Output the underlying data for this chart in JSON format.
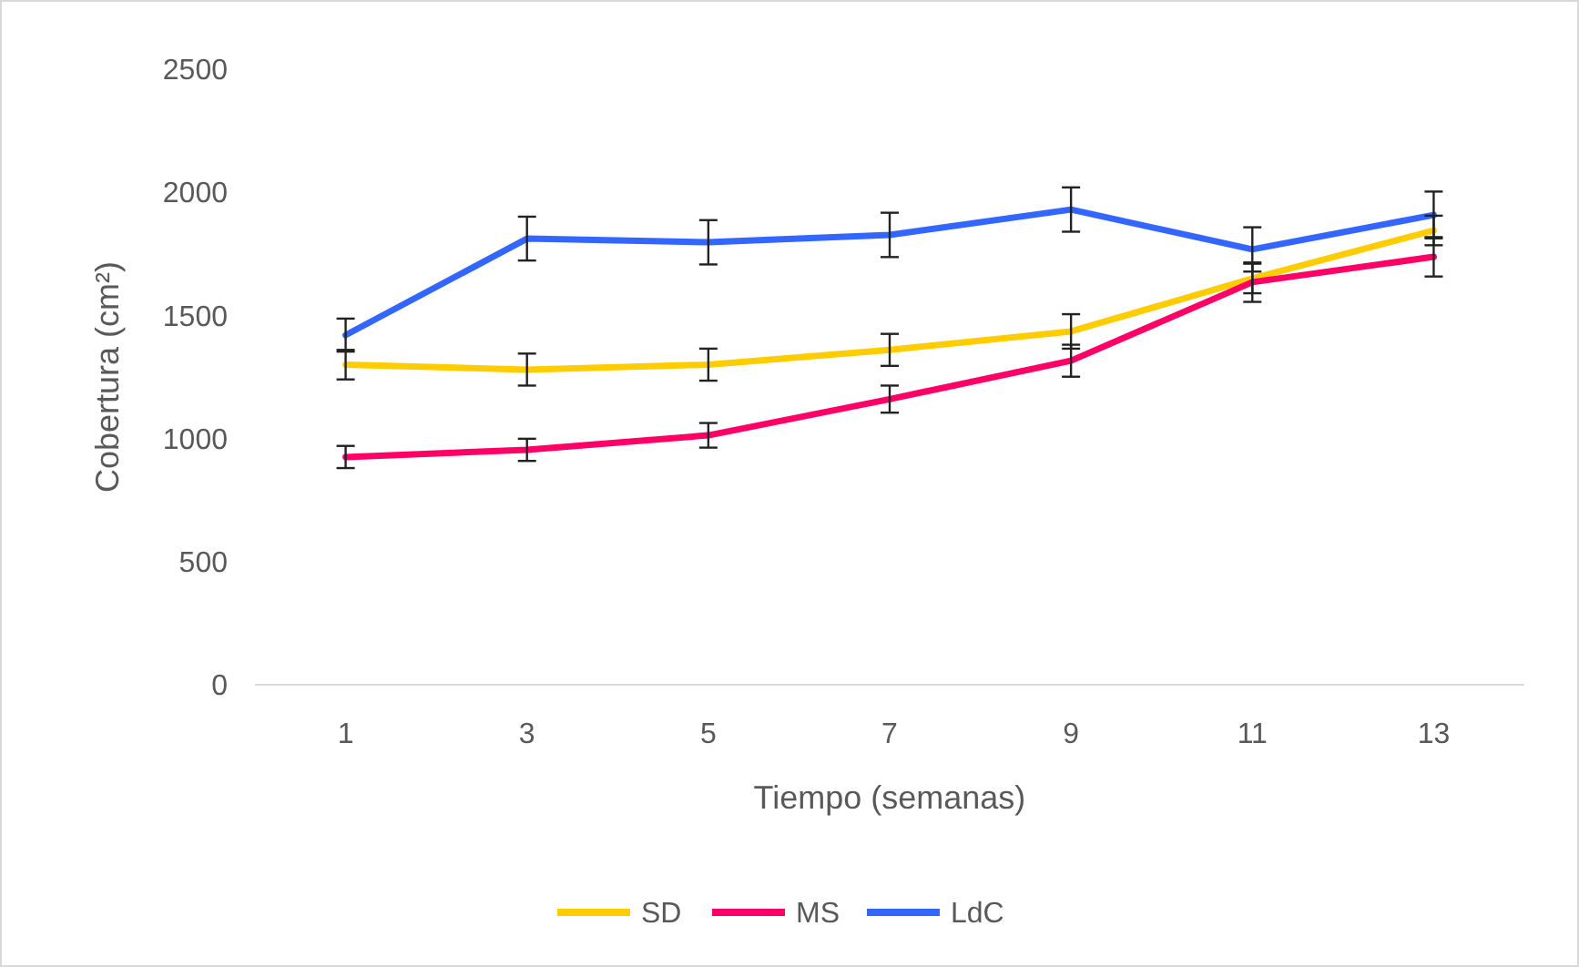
{
  "chart_data": {
    "type": "line",
    "xlabel": "Tiempo (semanas)",
    "ylabel": "Cobertura (cm²)",
    "x": [
      1,
      3,
      5,
      7,
      9,
      11,
      13
    ],
    "xlim": [
      0,
      14
    ],
    "xticks": [
      1,
      3,
      5,
      7,
      9,
      11,
      13
    ],
    "ylim": [
      0,
      2500
    ],
    "yticks": [
      0,
      500,
      1000,
      1500,
      2000,
      2500
    ],
    "grid": false,
    "legend": "bottom",
    "marker": "none",
    "line_style": "solid",
    "series": [
      {
        "name": "SD",
        "color": "#ffcc00",
        "values": [
          1300,
          1280,
          1300,
          1360,
          1435,
          1650,
          1845
        ],
        "errors": [
          60,
          65,
          65,
          65,
          70,
          60,
          60
        ]
      },
      {
        "name": "MS",
        "color": "#ff0066",
        "values": [
          925,
          954,
          1013,
          1160,
          1316,
          1635,
          1738
        ],
        "errors": [
          45,
          45,
          50,
          55,
          65,
          80,
          80
        ]
      },
      {
        "name": "LdC",
        "color": "#3366ff",
        "values": [
          1420,
          1812,
          1797,
          1827,
          1930,
          1768,
          1908
        ],
        "errors": [
          67,
          89,
          90,
          90,
          90,
          90,
          95
        ]
      }
    ]
  }
}
